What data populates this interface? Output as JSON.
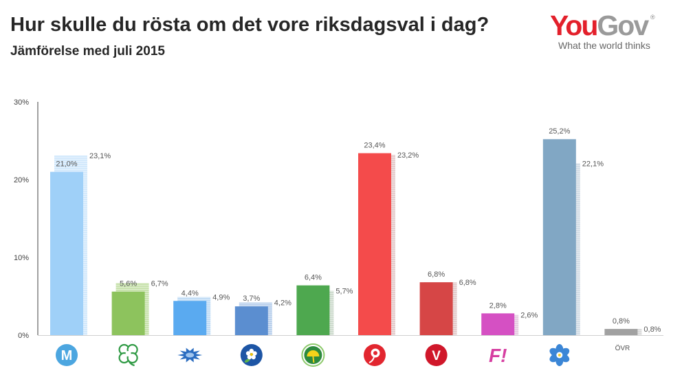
{
  "logo": {
    "brand_you": "You",
    "brand_gov": "Gov",
    "registered_mark": "®",
    "tagline": "What the world thinks",
    "colors": {
      "you": "#e3202b",
      "gov": "#9a9a9a",
      "tagline": "#666666"
    }
  },
  "chart_data": {
    "type": "bar",
    "title": "Hur skulle du rösta om det vore riksdagsval i dag?",
    "subtitle": "Jämförelse med juli 2015",
    "ylim": [
      0,
      30
    ],
    "yticks": {
      "values": [
        0,
        10,
        20,
        30
      ],
      "labels": [
        "0%",
        "10%",
        "20%",
        "30%"
      ]
    },
    "grid": false,
    "categories": [
      {
        "icon": "moderaterna-logo-icon",
        "logo_text": "M",
        "color": "#9fd0f8",
        "color_prev": "#d3e9fc",
        "icon_color": "#4ca6e0"
      },
      {
        "icon": "centerpartiet-clover-logo-icon",
        "color": "#8dc35d",
        "color_prev": "#c8e2ad",
        "icon_color": "#2f9a44"
      },
      {
        "icon": "folkpartiet-cornflower-logo-icon",
        "color": "#5aaaf0",
        "color_prev": "#c0dcf5",
        "icon_color": "#2a6cc0"
      },
      {
        "icon": "kristdemokraterna-logo-icon",
        "color": "#5b8ed0",
        "color_prev": "#b9d0ec",
        "icon_color": "#1d55a5"
      },
      {
        "icon": "miljopartiet-dandelion-logo-icon",
        "color": "#4ea84f",
        "color_prev": "#cfdccf",
        "icon_color": "#2d8a3e"
      },
      {
        "icon": "socialdemokraterna-rose-logo-icon",
        "color": "#f44b4b",
        "color_prev": "#e5cccc",
        "icon_color": "#e2262f"
      },
      {
        "icon": "vansterpartiet-logo-icon",
        "logo_text": "V",
        "color": "#d64646",
        "color_prev": "#e3cccc",
        "icon_color": "#d0172a"
      },
      {
        "icon": "feministiskt-initiativ-logo-icon",
        "logo_text": "F!",
        "color": "#d550c3",
        "color_prev": "#e6cde2",
        "icon_color": "#d63ea1"
      },
      {
        "icon": "sverigedemokraterna-hepatica-logo-icon",
        "color": "#81a7c4",
        "color_prev": "#d3dde6",
        "icon_color": "#3b86d6"
      },
      {
        "label": "ÖVR",
        "color": "#a1a1a1",
        "color_prev": "#d9d9d9"
      }
    ],
    "series": [
      {
        "values": [
          21.0,
          5.6,
          4.4,
          3.7,
          6.4,
          23.4,
          6.8,
          2.8,
          25.2,
          0.8
        ],
        "labels": [
          "21,0%",
          "5,6%",
          "4,4%",
          "3,7%",
          "6,4%",
          "23,4%",
          "6,8%",
          "2,8%",
          "25,2%",
          "0,8%"
        ]
      },
      {
        "values": [
          23.1,
          6.7,
          4.9,
          4.2,
          5.7,
          23.2,
          6.8,
          2.6,
          22.1,
          0.8
        ],
        "labels": [
          "23,1%",
          "6,7%",
          "4,9%",
          "4,2%",
          "5,7%",
          "23,2%",
          "6,8%",
          "2,6%",
          "22,1%",
          "0,8%"
        ]
      }
    ]
  }
}
